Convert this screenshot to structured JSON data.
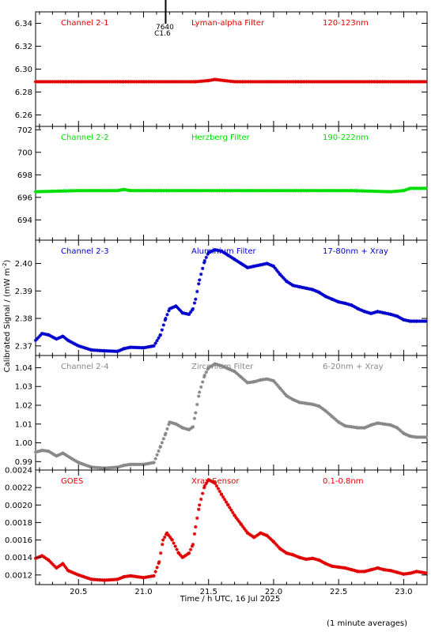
{
  "chart_data": {
    "type": "scatter",
    "xlabel": "Time / h UTC, 16 Jul 2025",
    "ylabel": "Calibrated Signal / (mW m",
    "ylabel_sup": "-2",
    "ylabel_close": ")",
    "footnote": "(1 minute averages)",
    "xlim": [
      20.17,
      23.18
    ],
    "xticks": [
      "20.5",
      "21.0",
      "21.5",
      "22.0",
      "22.5",
      "23.0"
    ],
    "xtick_values": [
      20.5,
      21.0,
      21.5,
      22.0,
      22.5,
      23.0
    ],
    "event_marker": {
      "x": 21.17,
      "label_top": "7640",
      "label_bottom": "C1.6"
    },
    "panels": [
      {
        "channel": "Channel 2-1",
        "filter": "Lyman-alpha Filter",
        "band": "120-123nm",
        "color": "#e00000",
        "ylim": [
          6.25,
          6.35
        ],
        "yticks": [
          "6.26",
          "6.28",
          "6.30",
          "6.32",
          "6.34"
        ],
        "ytick_values": [
          6.26,
          6.28,
          6.3,
          6.32,
          6.34
        ],
        "points": [
          [
            20.17,
            6.289
          ],
          [
            20.5,
            6.289
          ],
          [
            21.0,
            6.289
          ],
          [
            21.4,
            6.289
          ],
          [
            21.5,
            6.29
          ],
          [
            21.55,
            6.291
          ],
          [
            21.62,
            6.29
          ],
          [
            21.7,
            6.289
          ],
          [
            22.0,
            6.289
          ],
          [
            22.5,
            6.289
          ],
          [
            23.0,
            6.289
          ],
          [
            23.18,
            6.289
          ]
        ]
      },
      {
        "channel": "Channel 2-2",
        "filter": "Herzberg Filter",
        "band": "190-222nm",
        "color": "#00dd00",
        "ylim": [
          692.2,
          702.3
        ],
        "yticks": [
          "694",
          "696",
          "698",
          "700",
          "702"
        ],
        "ytick_values": [
          694,
          696,
          698,
          700,
          702
        ],
        "points": [
          [
            20.17,
            696.5
          ],
          [
            20.5,
            696.6
          ],
          [
            20.8,
            696.6
          ],
          [
            20.85,
            696.7
          ],
          [
            20.9,
            696.6
          ],
          [
            21.5,
            696.6
          ],
          [
            22.0,
            696.6
          ],
          [
            22.5,
            696.6
          ],
          [
            22.6,
            696.6
          ],
          [
            22.9,
            696.5
          ],
          [
            23.0,
            696.6
          ],
          [
            23.05,
            696.8
          ],
          [
            23.18,
            696.8
          ]
        ]
      },
      {
        "channel": "Channel 2-3",
        "filter": "Aluminium Filter",
        "band": "17-80nm + Xray",
        "color": "#0000cc",
        "ylim": [
          2.3665,
          2.4085
        ],
        "yticks": [
          "2.37",
          "2.38",
          "2.39",
          "2.40"
        ],
        "ytick_values": [
          2.37,
          2.38,
          2.39,
          2.4
        ],
        "points": [
          [
            20.17,
            2.372
          ],
          [
            20.22,
            2.3745
          ],
          [
            20.27,
            2.374
          ],
          [
            20.33,
            2.3725
          ],
          [
            20.38,
            2.3735
          ],
          [
            20.42,
            2.372
          ],
          [
            20.5,
            2.37
          ],
          [
            20.6,
            2.3685
          ],
          [
            20.7,
            2.3682
          ],
          [
            20.8,
            2.368
          ],
          [
            20.85,
            2.369
          ],
          [
            20.9,
            2.3695
          ],
          [
            21.0,
            2.3693
          ],
          [
            21.08,
            2.37
          ],
          [
            21.13,
            2.374
          ],
          [
            21.17,
            2.38
          ],
          [
            21.2,
            2.3835
          ],
          [
            21.25,
            2.3845
          ],
          [
            21.3,
            2.382
          ],
          [
            21.35,
            2.3815
          ],
          [
            21.38,
            2.3835
          ],
          [
            21.4,
            2.387
          ],
          [
            21.43,
            2.394
          ],
          [
            21.47,
            2.401
          ],
          [
            21.5,
            2.404
          ],
          [
            21.55,
            2.405
          ],
          [
            21.6,
            2.4045
          ],
          [
            21.65,
            2.403
          ],
          [
            21.7,
            2.4015
          ],
          [
            21.75,
            2.4
          ],
          [
            21.8,
            2.3985
          ],
          [
            21.85,
            2.399
          ],
          [
            21.9,
            2.3995
          ],
          [
            21.95,
            2.4
          ],
          [
            22.0,
            2.399
          ],
          [
            22.05,
            2.396
          ],
          [
            22.1,
            2.3935
          ],
          [
            22.15,
            2.392
          ],
          [
            22.2,
            2.3915
          ],
          [
            22.25,
            2.391
          ],
          [
            22.3,
            2.3905
          ],
          [
            22.35,
            2.3895
          ],
          [
            22.4,
            2.388
          ],
          [
            22.45,
            2.387
          ],
          [
            22.5,
            2.386
          ],
          [
            22.55,
            2.3855
          ],
          [
            22.6,
            2.3848
          ],
          [
            22.65,
            2.3835
          ],
          [
            22.7,
            2.3825
          ],
          [
            22.75,
            2.3818
          ],
          [
            22.8,
            2.3825
          ],
          [
            22.85,
            2.382
          ],
          [
            22.9,
            2.3815
          ],
          [
            22.95,
            2.3808
          ],
          [
            23.0,
            2.3795
          ],
          [
            23.05,
            2.379
          ],
          [
            23.1,
            2.379
          ],
          [
            23.18,
            2.379
          ]
        ]
      },
      {
        "channel": "Channel 2-4",
        "filter": "Zirconium Filter",
        "band": "6-20nm + Xray",
        "color": "#888888",
        "ylim": [
          0.9855,
          1.0465
        ],
        "yticks": [
          "0.99",
          "1.00",
          "1.01",
          "1.02",
          "1.03",
          "1.04"
        ],
        "ytick_values": [
          0.99,
          1.0,
          1.01,
          1.02,
          1.03,
          1.04
        ],
        "points": [
          [
            20.17,
            0.995
          ],
          [
            20.22,
            0.996
          ],
          [
            20.27,
            0.9955
          ],
          [
            20.33,
            0.993
          ],
          [
            20.38,
            0.9945
          ],
          [
            20.45,
            0.9915
          ],
          [
            20.5,
            0.9895
          ],
          [
            20.6,
            0.987
          ],
          [
            20.7,
            0.9865
          ],
          [
            20.8,
            0.987
          ],
          [
            20.85,
            0.988
          ],
          [
            20.9,
            0.9885
          ],
          [
            21.0,
            0.9885
          ],
          [
            21.08,
            0.9895
          ],
          [
            21.13,
            0.998
          ],
          [
            21.17,
            1.005
          ],
          [
            21.2,
            1.011
          ],
          [
            21.25,
            1.01
          ],
          [
            21.3,
            1.008
          ],
          [
            21.35,
            1.007
          ],
          [
            21.38,
            1.0085
          ],
          [
            21.4,
            1.016
          ],
          [
            21.43,
            1.027
          ],
          [
            21.47,
            1.036
          ],
          [
            21.5,
            1.04
          ],
          [
            21.55,
            1.042
          ],
          [
            21.6,
            1.041
          ],
          [
            21.65,
            1.0395
          ],
          [
            21.7,
            1.038
          ],
          [
            21.75,
            1.035
          ],
          [
            21.8,
            1.032
          ],
          [
            21.85,
            1.0325
          ],
          [
            21.9,
            1.0335
          ],
          [
            21.95,
            1.034
          ],
          [
            22.0,
            1.033
          ],
          [
            22.05,
            1.029
          ],
          [
            22.1,
            1.025
          ],
          [
            22.15,
            1.023
          ],
          [
            22.2,
            1.0215
          ],
          [
            22.25,
            1.021
          ],
          [
            22.3,
            1.0205
          ],
          [
            22.35,
            1.0195
          ],
          [
            22.4,
            1.017
          ],
          [
            22.45,
            1.014
          ],
          [
            22.5,
            1.011
          ],
          [
            22.55,
            1.009
          ],
          [
            22.6,
            1.0085
          ],
          [
            22.65,
            1.008
          ],
          [
            22.7,
            1.008
          ],
          [
            22.75,
            1.0095
          ],
          [
            22.8,
            1.0105
          ],
          [
            22.85,
            1.01
          ],
          [
            22.9,
            1.0095
          ],
          [
            22.95,
            1.008
          ],
          [
            23.0,
            1.005
          ],
          [
            23.05,
            1.0035
          ],
          [
            23.1,
            1.003
          ],
          [
            23.18,
            1.003
          ]
        ]
      },
      {
        "channel": "GOES",
        "filter": "Xray Sensor",
        "band": "0.1-0.8nm",
        "color": "#e00000",
        "ylim": [
          0.00109,
          0.0024
        ],
        "yticks": [
          "0.0012",
          "0.0014",
          "0.0016",
          "0.0018",
          "0.0020",
          "0.0022",
          "0.0024"
        ],
        "ytick_values": [
          0.0012,
          0.0014,
          0.0016,
          0.0018,
          0.002,
          0.0022,
          0.0024
        ],
        "points": [
          [
            20.17,
            0.00139
          ],
          [
            20.22,
            0.00142
          ],
          [
            20.27,
            0.00137
          ],
          [
            20.33,
            0.00128
          ],
          [
            20.38,
            0.00133
          ],
          [
            20.42,
            0.00125
          ],
          [
            20.5,
            0.0012
          ],
          [
            20.6,
            0.00115
          ],
          [
            20.7,
            0.00114
          ],
          [
            20.8,
            0.00115
          ],
          [
            20.85,
            0.00118
          ],
          [
            20.9,
            0.00119
          ],
          [
            21.0,
            0.00117
          ],
          [
            21.08,
            0.00119
          ],
          [
            21.12,
            0.00135
          ],
          [
            21.15,
            0.0016
          ],
          [
            21.18,
            0.00168
          ],
          [
            21.22,
            0.0016
          ],
          [
            21.27,
            0.00145
          ],
          [
            21.3,
            0.0014
          ],
          [
            21.35,
            0.00145
          ],
          [
            21.38,
            0.00155
          ],
          [
            21.4,
            0.00175
          ],
          [
            21.43,
            0.002
          ],
          [
            21.47,
            0.00222
          ],
          [
            21.5,
            0.00229
          ],
          [
            21.55,
            0.00225
          ],
          [
            21.6,
            0.00212
          ],
          [
            21.65,
            0.002
          ],
          [
            21.7,
            0.00188
          ],
          [
            21.75,
            0.00178
          ],
          [
            21.8,
            0.00168
          ],
          [
            21.85,
            0.00163
          ],
          [
            21.9,
            0.00168
          ],
          [
            21.95,
            0.00165
          ],
          [
            22.0,
            0.00158
          ],
          [
            22.05,
            0.0015
          ],
          [
            22.1,
            0.00145
          ],
          [
            22.15,
            0.00143
          ],
          [
            22.2,
            0.0014
          ],
          [
            22.25,
            0.00138
          ],
          [
            22.3,
            0.00139
          ],
          [
            22.35,
            0.00137
          ],
          [
            22.4,
            0.00133
          ],
          [
            22.45,
            0.0013
          ],
          [
            22.5,
            0.00129
          ],
          [
            22.55,
            0.00128
          ],
          [
            22.6,
            0.00126
          ],
          [
            22.65,
            0.00124
          ],
          [
            22.7,
            0.00124
          ],
          [
            22.75,
            0.00126
          ],
          [
            22.8,
            0.00128
          ],
          [
            22.85,
            0.00126
          ],
          [
            22.9,
            0.00125
          ],
          [
            22.95,
            0.00123
          ],
          [
            23.0,
            0.00121
          ],
          [
            23.05,
            0.00122
          ],
          [
            23.1,
            0.00124
          ],
          [
            23.18,
            0.00122
          ]
        ]
      }
    ]
  }
}
